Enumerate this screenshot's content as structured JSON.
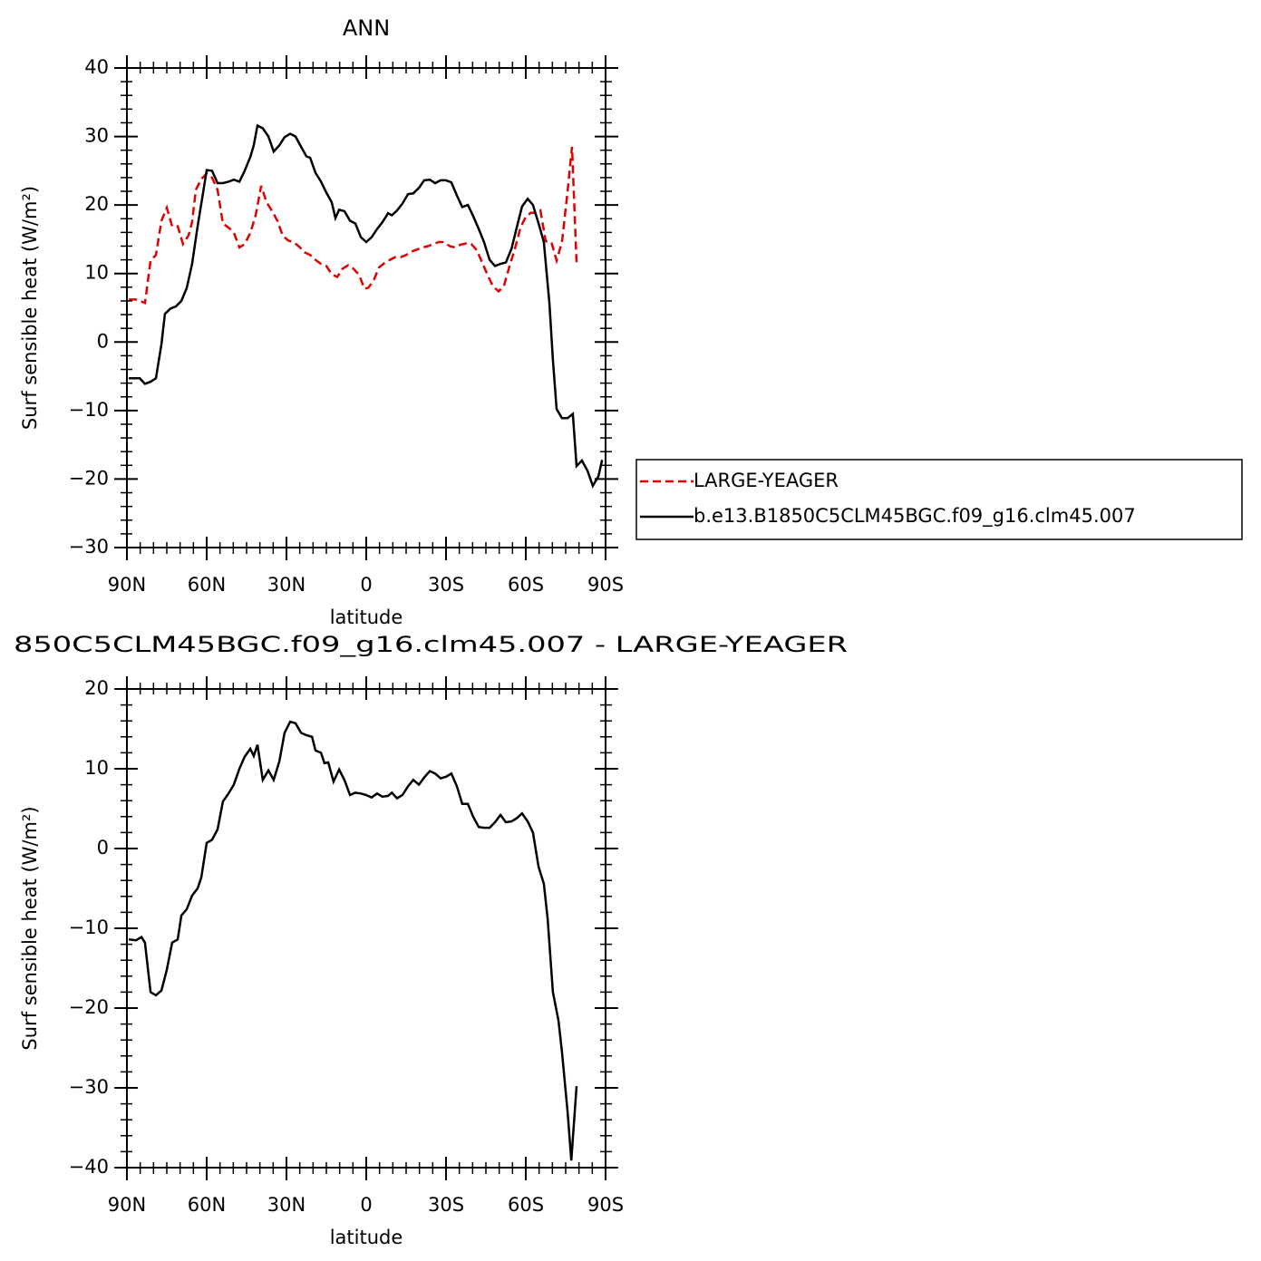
{
  "chart_data": [
    {
      "type": "line",
      "title": "ANN",
      "ylabel": "Surf sensible heat (W/m²)",
      "xlabel": "latitude",
      "xlim": [
        90,
        -90
      ],
      "xticks": [
        {
          "value": 90,
          "label": "90N"
        },
        {
          "value": 60,
          "label": "60N"
        },
        {
          "value": 30,
          "label": "30N"
        },
        0,
        {
          "value": -30,
          "label": "30S"
        },
        {
          "value": -60,
          "label": "60S"
        },
        {
          "value": -90,
          "label": "90S"
        }
      ],
      "xminorticks": [
        85,
        80,
        75,
        70,
        65,
        55,
        50,
        45,
        40,
        35,
        25,
        20,
        15,
        10,
        5,
        -5,
        -10,
        -15,
        -20,
        -25,
        -35,
        -40,
        -45,
        -50,
        -55,
        -65,
        -70,
        -75,
        -80,
        -85
      ],
      "ylim": [
        -30,
        40
      ],
      "yticks": [
        -30,
        -20,
        -10,
        0,
        10,
        20,
        30,
        40
      ],
      "yminorticks": [
        -28,
        -26,
        -24,
        -22,
        -18,
        -16,
        -14,
        -12,
        -8,
        -6,
        -4,
        -2,
        2,
        4,
        6,
        8,
        12,
        14,
        16,
        18,
        22,
        24,
        26,
        28,
        32,
        34,
        36,
        38
      ],
      "legend": "right",
      "series": [
        {
          "name": "LARGE-YEAGER",
          "color": "#e00000",
          "dash": true,
          "x": [
            89.3,
            86.6,
            83.2,
            81.1,
            79.1,
            77.0,
            75.0,
            73.0,
            70.9,
            68.9,
            66.8,
            65.5,
            64.1,
            62.0,
            60,
            58.0,
            55.9,
            53.9,
            51.8,
            49.8,
            47.7,
            45.7,
            43.6,
            41.6,
            39.5,
            37.5,
            35.4,
            33.4,
            31.4,
            29.3,
            27.3,
            25.2,
            23.2,
            21.1,
            19.1,
            17.0,
            15.0,
            13.0,
            10.9,
            8.9,
            6.8,
            4.8,
            2.7,
            0.7,
            -0.7,
            -2.7,
            -4.8,
            -6.8,
            -8.9,
            -10.9,
            -13.0,
            -15.0,
            -17.0,
            -19.1,
            -21.1,
            -23.2,
            -25.2,
            -27.3,
            -29.3,
            -31.4,
            -33.4,
            -35.4,
            -37.5,
            -39.5,
            -41.6,
            -43.6,
            -45.7,
            -47.7,
            -49.8,
            -51.8,
            -53.9,
            -55.9,
            -58.0,
            -60,
            -62.0,
            -64.1,
            -65.5,
            -67.5,
            -69.6,
            -71.6,
            -73.6,
            -75.7,
            -77.4,
            -79.1
          ],
          "values": [
            6.2,
            6.2,
            5.7,
            11.9,
            12.7,
            17.7,
            19.6,
            16.9,
            16.9,
            14.3,
            15.6,
            17.5,
            22.2,
            23.8,
            24.6,
            24.0,
            22.2,
            17.3,
            16.7,
            16.0,
            13.8,
            14.3,
            15.9,
            18.5,
            22.8,
            20.4,
            19.1,
            17.7,
            15.5,
            14.8,
            14.6,
            13.9,
            13.1,
            12.7,
            12.0,
            11.4,
            11.1,
            9.9,
            9.5,
            10.7,
            11.2,
            10.7,
            9.8,
            7.8,
            7.9,
            8.9,
            10.9,
            11.5,
            12.0,
            12.4,
            12.4,
            12.7,
            13.2,
            13.5,
            13.8,
            14.0,
            14.3,
            14.6,
            14.6,
            14.0,
            13.8,
            14.2,
            14.4,
            14.3,
            13.4,
            11.6,
            9.7,
            8.1,
            7.4,
            8.2,
            11.1,
            13.6,
            16.7,
            18.3,
            18.9,
            18.8,
            19.2,
            14.7,
            14.6,
            11.9,
            14.6,
            22.0,
            28.5,
            11.5
          ]
        },
        {
          "name": "b.e13.B1850C5CLM45BGC.f09_g16.clm45.007",
          "color": "#000000",
          "dash": false,
          "x": [
            89.3,
            85.2,
            83.2,
            81.1,
            79.1,
            77.0,
            75.7,
            73.6,
            71.6,
            69.5,
            67.5,
            65.5,
            63.4,
            61.4,
            60,
            58.0,
            55.9,
            53.9,
            51.8,
            49.8,
            47.7,
            45.7,
            43.6,
            42.3,
            40.9,
            38.9,
            36.8,
            34.8,
            32.7,
            30.7,
            28.6,
            26.6,
            24.5,
            22.5,
            21.1,
            19.1,
            17.0,
            15.0,
            13.0,
            11.6,
            10.2,
            8.2,
            6.1,
            4.1,
            2.0,
            0,
            -2.0,
            -4.1,
            -6.1,
            -8.2,
            -9.6,
            -11.6,
            -13.6,
            -15.7,
            -17.7,
            -19.8,
            -21.8,
            -23.9,
            -25.9,
            -28.0,
            -30,
            -32.0,
            -34.1,
            -36.1,
            -38.2,
            -40.2,
            -42.3,
            -44.3,
            -46.4,
            -48.4,
            -50.5,
            -52.5,
            -54.6,
            -56.6,
            -58.6,
            -60.7,
            -62.7,
            -64.8,
            -66.8,
            -68.9,
            -70.2,
            -71.6,
            -73.6,
            -75.7,
            -77.7,
            -79.1,
            -81.1,
            -83.2,
            -85.2,
            -87.3,
            -88.7
          ],
          "values": [
            -5.3,
            -5.3,
            -6.1,
            -5.8,
            -5.3,
            -0.3,
            4.1,
            4.9,
            5.2,
            6.0,
            7.9,
            11.4,
            16.9,
            21.7,
            25.1,
            25.0,
            23.2,
            23.2,
            23.4,
            23.7,
            23.4,
            25.0,
            27.0,
            28.7,
            31.6,
            31.2,
            30.0,
            27.8,
            28.7,
            29.9,
            30.4,
            30.0,
            28.5,
            27.1,
            26.9,
            24.7,
            23.4,
            21.8,
            20.4,
            18.1,
            19.3,
            19.1,
            17.7,
            17.3,
            15.3,
            14.6,
            15.3,
            16.5,
            17.5,
            18.8,
            18.5,
            19.2,
            20.2,
            21.6,
            21.7,
            22.5,
            23.6,
            23.7,
            23.2,
            23.6,
            23.6,
            23.3,
            21.4,
            19.7,
            20.0,
            18.4,
            16.5,
            14.6,
            12.0,
            11.1,
            11.4,
            11.6,
            13.6,
            16.7,
            19.8,
            20.9,
            20.0,
            17.3,
            14.6,
            5.6,
            -2.6,
            -9.8,
            -11.1,
            -11.1,
            -10.5,
            -18.1,
            -17.3,
            -18.8,
            -21.0,
            -19.6,
            -17.2
          ]
        }
      ]
    },
    {
      "type": "line",
      "title": "850C5CLM45BGC.f09_g16.clm45.007 - LARGE-YEAGER",
      "ylabel": "Surf sensible heat (W/m²)",
      "xlabel": "latitude",
      "xlim": [
        90,
        -90
      ],
      "xticks": [
        {
          "value": 90,
          "label": "90N"
        },
        {
          "value": 60,
          "label": "60N"
        },
        {
          "value": 30,
          "label": "30N"
        },
        0,
        {
          "value": -30,
          "label": "30S"
        },
        {
          "value": -60,
          "label": "60S"
        },
        {
          "value": -90,
          "label": "90S"
        }
      ],
      "xminorticks": [
        85,
        80,
        75,
        70,
        65,
        55,
        50,
        45,
        40,
        35,
        25,
        20,
        15,
        10,
        5,
        -5,
        -10,
        -15,
        -20,
        -25,
        -35,
        -40,
        -45,
        -50,
        -55,
        -65,
        -70,
        -75,
        -80,
        -85
      ],
      "ylim": [
        -40,
        20
      ],
      "yticks": [
        -40,
        -30,
        -20,
        -10,
        0,
        10,
        20
      ],
      "yminorticks": [
        -38,
        -36,
        -34,
        -32,
        -28,
        -26,
        -24,
        -22,
        -18,
        -16,
        -14,
        -12,
        -8,
        -6,
        -4,
        -2,
        2,
        4,
        6,
        8,
        12,
        14,
        16,
        18
      ],
      "series": [
        {
          "color": "#000000",
          "dash": false,
          "x": [
            89.3,
            86.6,
            84.5,
            83.2,
            81.1,
            79.1,
            77.0,
            75.0,
            73.0,
            70.9,
            69.5,
            67.5,
            65.5,
            63.4,
            62.0,
            60,
            58.0,
            55.9,
            53.9,
            51.8,
            49.8,
            47.7,
            45.7,
            43.6,
            42.3,
            40.9,
            38.9,
            36.8,
            34.8,
            32.7,
            30.7,
            28.6,
            26.6,
            24.5,
            22.5,
            20.4,
            19.1,
            17.0,
            15.7,
            14.3,
            12.3,
            10.2,
            8.2,
            6.1,
            4.1,
            2.0,
            0,
            -2.0,
            -4.1,
            -6.1,
            -8.2,
            -9.6,
            -11.6,
            -13.6,
            -15.7,
            -17.7,
            -19.8,
            -21.8,
            -23.9,
            -25.9,
            -28.0,
            -30,
            -32.0,
            -34.1,
            -36.1,
            -38.2,
            -40.2,
            -42.3,
            -44.3,
            -46.4,
            -48.4,
            -50.5,
            -52.5,
            -54.6,
            -56.6,
            -58.6,
            -60.7,
            -62.7,
            -64.8,
            -66.8,
            -68.2,
            -70.2,
            -72.3,
            -73.6,
            -75.7,
            -77.1,
            -79.1
          ],
          "values": [
            -11.4,
            -11.5,
            -11.1,
            -11.8,
            -18.0,
            -18.4,
            -17.8,
            -15.2,
            -11.8,
            -11.4,
            -8.4,
            -7.6,
            -5.9,
            -5.0,
            -3.6,
            0.7,
            1.1,
            2.4,
            5.9,
            6.9,
            8.0,
            10.0,
            11.5,
            12.5,
            11.6,
            13.0,
            8.6,
            9.8,
            8.6,
            10.9,
            14.5,
            15.9,
            15.7,
            14.5,
            14.2,
            14.0,
            12.3,
            12.0,
            10.7,
            10.8,
            8.4,
            9.9,
            8.6,
            6.7,
            7.0,
            6.9,
            6.7,
            6.4,
            6.9,
            6.5,
            6.6,
            7.0,
            6.3,
            6.7,
            7.8,
            8.6,
            8.0,
            8.9,
            9.7,
            9.4,
            8.8,
            9.0,
            9.4,
            7.8,
            5.6,
            5.6,
            4.0,
            2.7,
            2.6,
            2.6,
            3.3,
            4.2,
            3.3,
            3.4,
            3.8,
            4.4,
            3.4,
            2.0,
            -2.3,
            -4.4,
            -8.8,
            -18.0,
            -21.6,
            -25.5,
            -33.0,
            -39.1,
            -29.8
          ]
        }
      ]
    }
  ]
}
